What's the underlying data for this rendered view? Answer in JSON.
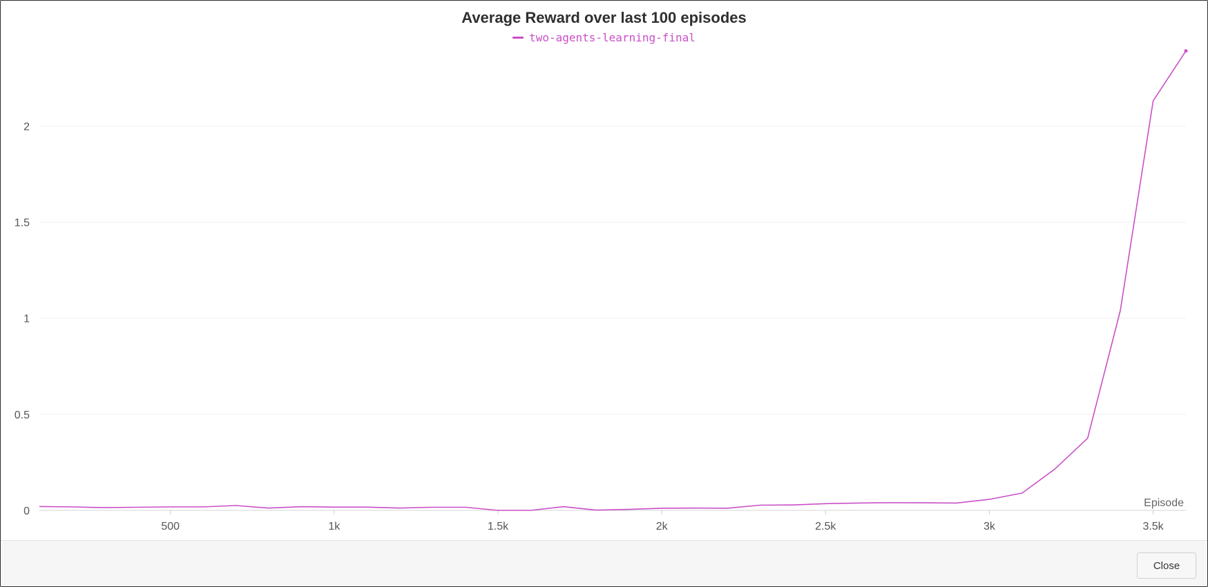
{
  "chart_data": {
    "type": "line",
    "title": "Average Reward over last 100 episodes",
    "xlabel": "Episode",
    "ylabel": "",
    "xlim": [
      100,
      3600
    ],
    "ylim": [
      0,
      2.4
    ],
    "x_ticks": [
      {
        "value": 500,
        "label": "500"
      },
      {
        "value": 1000,
        "label": "1k"
      },
      {
        "value": 1500,
        "label": "1.5k"
      },
      {
        "value": 2000,
        "label": "2k"
      },
      {
        "value": 2500,
        "label": "2.5k"
      },
      {
        "value": 3000,
        "label": "3k"
      },
      {
        "value": 3500,
        "label": "3.5k"
      }
    ],
    "y_ticks": [
      {
        "value": 0,
        "label": "0"
      },
      {
        "value": 0.5,
        "label": "0.5"
      },
      {
        "value": 1,
        "label": "1"
      },
      {
        "value": 1.5,
        "label": "1.5"
      },
      {
        "value": 2,
        "label": "2"
      }
    ],
    "grid": true,
    "legend_position": "top-center",
    "series": [
      {
        "name": "two-agents-learning-final",
        "color": "#c94fc7",
        "x": [
          100,
          200,
          300,
          400,
          500,
          600,
          700,
          800,
          900,
          1000,
          1100,
          1200,
          1300,
          1400,
          1500,
          1600,
          1700,
          1800,
          1900,
          2000,
          2100,
          2200,
          2300,
          2400,
          2500,
          2600,
          2700,
          2800,
          2900,
          3000,
          3100,
          3200,
          3300,
          3400,
          3500,
          3600
        ],
        "y": [
          0.02,
          0.018,
          0.014,
          0.016,
          0.018,
          0.018,
          0.025,
          0.012,
          0.019,
          0.017,
          0.017,
          0.012,
          0.016,
          0.016,
          0.0,
          0.0,
          0.019,
          0.001,
          0.005,
          0.011,
          0.012,
          0.011,
          0.027,
          0.028,
          0.035,
          0.038,
          0.04,
          0.039,
          0.038,
          0.057,
          0.09,
          0.215,
          0.375,
          1.04,
          2.13,
          2.39
        ]
      }
    ]
  },
  "footer": {
    "close_label": "Close"
  }
}
